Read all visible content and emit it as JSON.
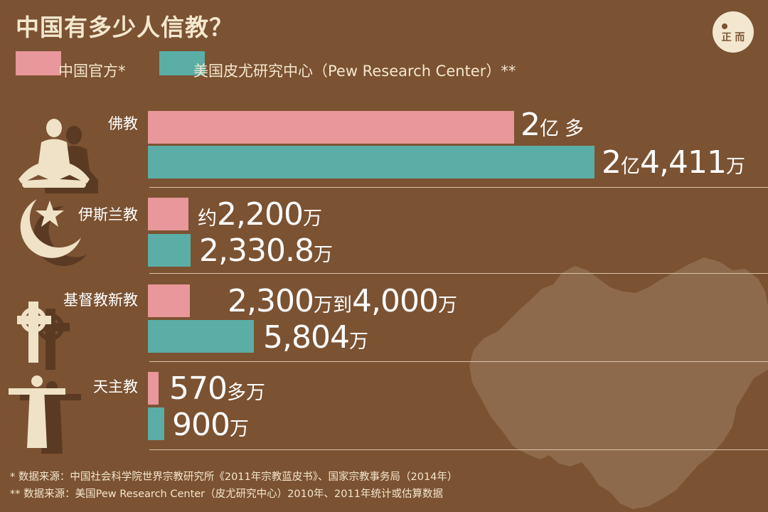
{
  "title": "中国有多少人信教？",
  "logo": {
    "text": "正 而"
  },
  "colors": {
    "background": "#7b5232",
    "official": "#e8979a",
    "pew": "#5aaea6",
    "map": "#8e6a4d",
    "icon_front": "#efe2c6",
    "icon_back": "#5a3a22"
  },
  "legend": [
    {
      "label": "中国官方*"
    },
    {
      "label": "美国皮尤研究中心（Pew Research Center）**"
    }
  ],
  "map_label": "",
  "rows": [
    {
      "label": "佛教",
      "icon": "meditation-figure-icon",
      "official": {
        "prefix": "",
        "parts": [
          {
            "num": "2",
            "unit": "亿"
          },
          {
            "num": "",
            "unit": "多"
          }
        ]
      },
      "pew": {
        "prefix": "",
        "parts": [
          {
            "num": "2",
            "unit": "亿"
          },
          {
            "num": "4,411",
            "unit": "万"
          }
        ]
      }
    },
    {
      "label": "伊斯兰教",
      "icon": "crescent-star-icon",
      "official": {
        "prefix": "约",
        "parts": [
          {
            "num": "2,200",
            "unit": "万"
          }
        ]
      },
      "pew": {
        "prefix": "",
        "parts": [
          {
            "num": "2,330.8",
            "unit": "万"
          }
        ]
      }
    },
    {
      "label": "基督教新教",
      "icon": "celtic-cross-icon",
      "official": {
        "prefix": "",
        "parts": [
          {
            "num": "2,300",
            "unit": "万到"
          },
          {
            "num": "4,000",
            "unit": "万"
          }
        ]
      },
      "pew": {
        "prefix": "",
        "parts": [
          {
            "num": "5,804",
            "unit": "万"
          }
        ]
      }
    },
    {
      "label": "天主教",
      "icon": "christ-statue-icon",
      "official": {
        "prefix": "",
        "parts": [
          {
            "num": "570",
            "unit": "多万"
          }
        ]
      },
      "pew": {
        "prefix": "",
        "parts": [
          {
            "num": "900",
            "unit": "万"
          }
        ]
      }
    }
  ],
  "notes": [
    "* 数据来源：中国社会科学院世界宗教研究所《2011年宗教蓝皮书》、国家宗教事务局（2014年）",
    "** 数据来源：美国Pew Research Center（皮尤研究中心）2010年、2011年统计或估算数据"
  ],
  "chart_data": {
    "type": "bar",
    "orientation": "horizontal",
    "title": "中国有多少人信教？",
    "categories": [
      "佛教",
      "伊斯兰教",
      "基督教新教",
      "天主教"
    ],
    "units": "万",
    "series": [
      {
        "name": "中国官方*",
        "values": [
          20000,
          2200,
          2300,
          570
        ],
        "upper_values": [
          null,
          null,
          4000,
          null
        ]
      },
      {
        "name": "美国皮尤研究中心（Pew Research Center）**",
        "values": [
          24411,
          2330.8,
          5804,
          900
        ]
      }
    ],
    "legend_position": "top-left",
    "grid": false
  }
}
